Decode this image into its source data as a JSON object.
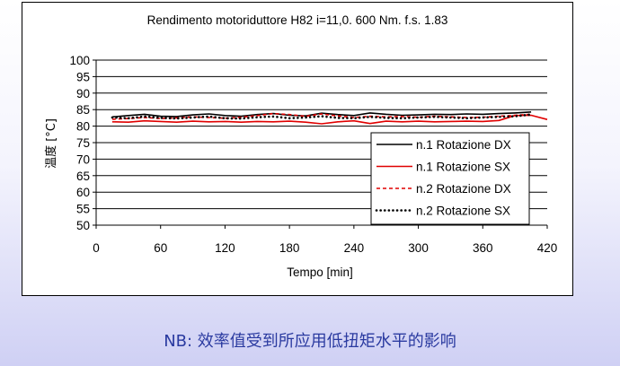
{
  "caption": "NB: 效率值受到所应用低扭矩水平的影响",
  "colors": {
    "caption_text": "#2a3aa0",
    "series_black": "#000000",
    "series_red": "#e00000"
  },
  "chart_data": {
    "type": "line",
    "title": "Rendimento motoriduttore H82 i=11,0. 600 Nm.  f.s. 1.83",
    "xlabel": "Tempo [min]",
    "ylabel": "温度 [°C]",
    "xlim": [
      0,
      420
    ],
    "ylim": [
      50,
      100
    ],
    "x_ticks": [
      "0",
      "60",
      "120",
      "180",
      "240",
      "300",
      "360",
      "420"
    ],
    "y_ticks": [
      "50",
      "55",
      "60",
      "65",
      "70",
      "75",
      "80",
      "85",
      "90",
      "95",
      "100"
    ],
    "grid": "horizontal",
    "legend_position": "right-middle",
    "series": [
      {
        "name": "n.1 Rotazione DX",
        "style": "solid",
        "color": "#000000",
        "x": [
          15,
          30,
          45,
          60,
          75,
          90,
          105,
          120,
          135,
          150,
          165,
          180,
          195,
          210,
          225,
          240,
          255,
          270,
          285,
          300,
          315,
          330,
          345,
          360,
          375,
          390,
          405
        ],
        "y": [
          82.8,
          83.2,
          83.6,
          83.0,
          82.9,
          83.4,
          83.7,
          83.2,
          83.0,
          83.5,
          83.8,
          83.3,
          83.1,
          83.9,
          83.5,
          83.2,
          84.0,
          83.6,
          83.3,
          83.4,
          83.6,
          83.5,
          83.7,
          83.6,
          83.8,
          84.0,
          84.3
        ]
      },
      {
        "name": "n.1 Rotazione SX",
        "style": "solid",
        "color": "#e00000",
        "x": [
          15,
          30,
          45,
          60,
          75,
          90,
          105,
          120,
          135,
          150,
          165,
          180,
          195,
          210,
          225,
          240,
          255,
          270,
          285,
          300,
          315,
          330,
          345,
          360,
          375,
          390,
          405,
          420
        ],
        "y": [
          81.3,
          81.2,
          81.6,
          81.4,
          81.2,
          81.5,
          81.3,
          81.4,
          81.2,
          81.4,
          81.3,
          81.5,
          81.2,
          80.7,
          81.3,
          81.6,
          80.8,
          81.5,
          81.3,
          81.5,
          81.3,
          81.4,
          81.5,
          81.4,
          81.7,
          83.2,
          83.3,
          82.0
        ]
      },
      {
        "name": "n.2 Rotazione DX",
        "style": "dashed",
        "color": "#e00000",
        "x": [
          15,
          30,
          45,
          60,
          75,
          90,
          105,
          120,
          135,
          150,
          165,
          180,
          195,
          210,
          225,
          240,
          255,
          270,
          285,
          300,
          315,
          330,
          345,
          360,
          375,
          390,
          405
        ],
        "y": [
          82.1,
          82.3,
          82.6,
          82.3,
          82.5,
          82.8,
          82.6,
          82.4,
          82.7,
          83.2,
          83.8,
          83.5,
          83.0,
          83.7,
          83.1,
          82.6,
          83.0,
          82.8,
          82.9,
          82.7,
          83.0,
          82.8,
          82.6,
          82.7,
          83.0,
          83.3,
          83.6
        ]
      },
      {
        "name": "n.2 Rotazione SX",
        "style": "dotted",
        "color": "#000000",
        "x": [
          15,
          30,
          45,
          60,
          75,
          90,
          105,
          120,
          135,
          150,
          165,
          180,
          195,
          210,
          225,
          240,
          255,
          270,
          285,
          300,
          315,
          330,
          345,
          360,
          375,
          390,
          405
        ],
        "y": [
          82.6,
          82.4,
          82.9,
          82.5,
          82.3,
          82.6,
          82.9,
          82.4,
          82.3,
          82.7,
          82.9,
          82.4,
          82.6,
          83.0,
          82.5,
          82.4,
          82.8,
          82.5,
          82.4,
          82.6,
          82.8,
          82.6,
          82.4,
          82.6,
          82.8,
          83.0,
          83.5
        ]
      }
    ]
  }
}
